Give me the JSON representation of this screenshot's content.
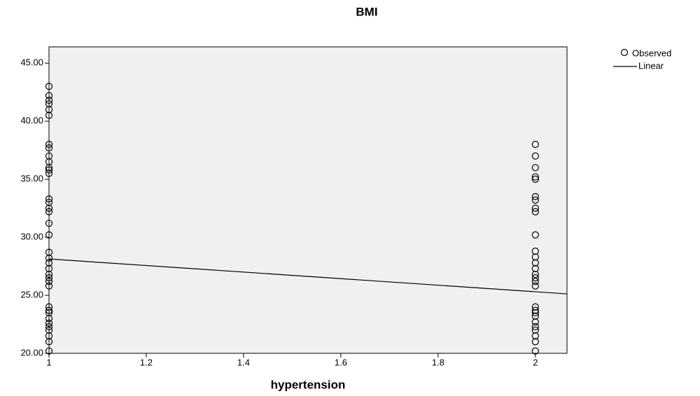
{
  "chart_data": {
    "type": "scatter",
    "title": "BMI",
    "x_label": "hypertension",
    "xlim": [
      1,
      2.065
    ],
    "ylim": [
      20,
      46.4
    ],
    "xticks": [
      1,
      1.2,
      1.4,
      1.6,
      1.8,
      2
    ],
    "yticks": [
      {
        "value": 20,
        "label": "20.00"
      },
      {
        "value": 25,
        "label": "25.00"
      },
      {
        "value": 30,
        "label": "30.00"
      },
      {
        "value": 35,
        "label": "35.00"
      },
      {
        "value": 40,
        "label": "40.00"
      },
      {
        "value": 45,
        "label": "45.00"
      }
    ],
    "grid": false,
    "legend": "outside-top-right",
    "series": [
      {
        "name": "Observed",
        "color": "#000000",
        "marker": "open-circle",
        "x": [
          1,
          1,
          1,
          1,
          1,
          1,
          1,
          1,
          1,
          1,
          1,
          1,
          1,
          1,
          1,
          1,
          1,
          1,
          1,
          1,
          1,
          1,
          1,
          1,
          1,
          1,
          1,
          1,
          1,
          1,
          1,
          1,
          1,
          1,
          1,
          1,
          1,
          2,
          2,
          2,
          2,
          2,
          2,
          2,
          2,
          2,
          2,
          2,
          2,
          2,
          2,
          2,
          2,
          2,
          2,
          2,
          2,
          2,
          2,
          2,
          2,
          2,
          2,
          2,
          2
        ],
        "values": [
          43,
          42.2,
          41.8,
          41.5,
          41,
          40.5,
          38,
          37.7,
          37,
          36.5,
          36,
          35.8,
          35.5,
          33.3,
          33,
          32.5,
          32.2,
          31.2,
          30.2,
          28.7,
          28.2,
          27.8,
          27.3,
          26.8,
          26.5,
          26.2,
          25.8,
          24,
          23.7,
          23.5,
          23,
          22.6,
          22.3,
          22,
          21.5,
          21,
          20.2,
          38,
          37,
          36,
          35.2,
          35,
          33.5,
          33.2,
          32.5,
          32.2,
          30.2,
          28.8,
          28.3,
          27.8,
          27.3,
          26.8,
          26.5,
          26.2,
          25.8,
          24,
          23.7,
          23.5,
          23.2,
          22.7,
          22.3,
          22,
          21.5,
          21,
          20.2
        ]
      },
      {
        "name": "Linear",
        "color": "#000000",
        "marker": "line",
        "x": [
          1,
          2.065
        ],
        "values": [
          28.13,
          25.12
        ]
      }
    ]
  }
}
